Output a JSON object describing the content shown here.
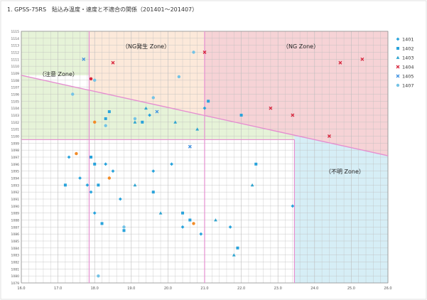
{
  "page_title": "1. GPSS-75RS　貼込み温度・速度と不適合の関係（201401〜201407）",
  "zones": {
    "caution": "（注意 Zone）",
    "ng_occur": "（NG発生 Zone）",
    "ng": "（NG Zone）",
    "unstable": "（不明 Zone）"
  },
  "colors": {
    "caution_zone": "#E6F3D8",
    "ng_occur_zone": "#FCE9DA",
    "ng_zone": "#F6D3D6",
    "unstable_zone": "#D6EEF6",
    "grid": "#BDBDBD",
    "pink_line": "#E58FD0",
    "s1401": "#29A3DB",
    "s1402": "#29A3DB",
    "s1403": "#2FA4CF",
    "s1404": "#D7263D",
    "s1405": "#3D8FE0",
    "s1407": "#74C3E6",
    "orange": "#F28C28"
  },
  "chart_data": {
    "type": "scatter",
    "title": "",
    "xlabel": "",
    "ylabel": "",
    "xlim": [
      16.0,
      26.0
    ],
    "ylim": [
      1079,
      1115
    ],
    "x_ticks": [
      16.0,
      17.0,
      18.0,
      19.0,
      20.0,
      21.0,
      22.0,
      23.0,
      24.0,
      25.0,
      26.0
    ],
    "x_tick_labels": [
      "16.0",
      "17.0",
      "18.0",
      "19.0",
      "20.0",
      "21.0",
      "22.0",
      "23.0",
      "24.0",
      "25.0",
      "26.0"
    ],
    "y_ticks": [
      1079,
      1080,
      1081,
      1082,
      1083,
      1084,
      1085,
      1086,
      1087,
      1088,
      1089,
      1090,
      1091,
      1092,
      1093,
      1094,
      1095,
      1096,
      1097,
      1098,
      1099,
      1100,
      1101,
      1102,
      1103,
      1104,
      1105,
      1106,
      1107,
      1108,
      1109,
      1110,
      1111,
      1112,
      1113,
      1114,
      1115
    ],
    "y_tick_labels": [
      "1079",
      "1080",
      "1081",
      "1082",
      "1083",
      "1084",
      "1085",
      "1086",
      "1087",
      "1088",
      "1089",
      "1090",
      "1091",
      "1092",
      "1093",
      "1094",
      "1095",
      "1096",
      "1097",
      "1098",
      "1099",
      "1100",
      "1101",
      "1102",
      "1103",
      "1104",
      "1105",
      "1106",
      "1107",
      "1108",
      "1109",
      "1110",
      "1111",
      "1112",
      "1113",
      "1114",
      "1115"
    ],
    "grid": true,
    "legend_position": "right",
    "zone_bounds": {
      "v1_x": 17.85,
      "v2_x": 21.0,
      "v3_x": 23.45,
      "h1_y": 1109.0,
      "h2_y": 1099.5,
      "diag_start": [
        16.0,
        1108.7
      ],
      "diag_end": [
        26.0,
        1097.2
      ]
    },
    "series": [
      {
        "name": "1401",
        "marker": "diamond",
        "color": "#29A3DB",
        "points": [
          [
            17.3,
            1097.0
          ],
          [
            17.6,
            1094.0
          ],
          [
            17.8,
            1093.0
          ],
          [
            17.9,
            1092.0
          ],
          [
            18.0,
            1089.0
          ],
          [
            18.3,
            1096.0
          ],
          [
            18.5,
            1095.0
          ],
          [
            18.7,
            1091.0
          ],
          [
            19.5,
            1103.0
          ],
          [
            19.6,
            1095.0
          ],
          [
            20.1,
            1096.0
          ],
          [
            20.4,
            1087.0
          ],
          [
            20.9,
            1086.0
          ],
          [
            21.0,
            1104.0
          ],
          [
            21.7,
            1087.0
          ],
          [
            23.4,
            1090.0
          ]
        ]
      },
      {
        "name": "1402",
        "marker": "square",
        "color": "#29A3DB",
        "points": [
          [
            17.2,
            1093.0
          ],
          [
            17.9,
            1097.0
          ],
          [
            18.0,
            1096.0
          ],
          [
            18.1,
            1093.0
          ],
          [
            18.2,
            1087.5
          ],
          [
            18.3,
            1102.5
          ],
          [
            18.4,
            1103.5
          ],
          [
            18.8,
            1086.5
          ],
          [
            19.3,
            1102.0
          ],
          [
            19.6,
            1092.0
          ],
          [
            20.4,
            1089.0
          ],
          [
            20.6,
            1088.0
          ],
          [
            21.1,
            1105.0
          ],
          [
            21.9,
            1084.0
          ],
          [
            22.0,
            1103.0
          ],
          [
            22.4,
            1096.0
          ]
        ]
      },
      {
        "name": "1403",
        "marker": "triangle",
        "color": "#2FA4CF",
        "points": [
          [
            19.1,
            1102.0
          ],
          [
            19.4,
            1104.0
          ],
          [
            19.1,
            1093.0
          ],
          [
            19.8,
            1089.0
          ],
          [
            20.8,
            1101.0
          ],
          [
            21.3,
            1088.0
          ],
          [
            21.8,
            1083.0
          ],
          [
            22.3,
            1093.0
          ],
          [
            20.2,
            1102.0
          ]
        ]
      },
      {
        "name": "1404",
        "marker": "x",
        "color": "#D7263D",
        "points": [
          [
            18.5,
            1110.5
          ],
          [
            21.0,
            1112.0
          ],
          [
            22.8,
            1104.0
          ],
          [
            23.4,
            1103.0
          ],
          [
            24.7,
            1110.5
          ],
          [
            25.3,
            1111.0
          ],
          [
            24.4,
            1100.0
          ]
        ]
      },
      {
        "name": "1405",
        "marker": "x",
        "color": "#3D8FE0",
        "points": [
          [
            17.7,
            1111.0
          ],
          [
            19.7,
            1103.5
          ],
          [
            20.6,
            1098.5
          ]
        ]
      },
      {
        "name": "1407",
        "marker": "circle",
        "color": "#74C3E6",
        "points": [
          [
            17.4,
            1106.0
          ],
          [
            18.3,
            1101.5
          ],
          [
            18.0,
            1108.0
          ],
          [
            19.1,
            1102.5
          ],
          [
            19.6,
            1105.5
          ],
          [
            20.3,
            1108.5
          ],
          [
            20.7,
            1112.0
          ],
          [
            18.8,
            1087.0
          ],
          [
            18.1,
            1080.0
          ]
        ]
      },
      {
        "name": "",
        "marker": "circle",
        "color": "#F28C28",
        "points": [
          [
            17.5,
            1097.5
          ],
          [
            18.0,
            1102.0
          ],
          [
            18.4,
            1094.0
          ],
          [
            20.7,
            1087.5
          ]
        ]
      },
      {
        "name": "",
        "marker": "circle",
        "color": "#D7263D",
        "points": [
          [
            17.9,
            1108.2
          ]
        ]
      }
    ],
    "legend_entries": [
      {
        "label": "1401",
        "marker": "diamond",
        "color": "#29A3DB"
      },
      {
        "label": "1402",
        "marker": "square",
        "color": "#29A3DB"
      },
      {
        "label": "1403",
        "marker": "triangle",
        "color": "#2FA4CF"
      },
      {
        "label": "1404",
        "marker": "x",
        "color": "#D7263D"
      },
      {
        "label": "1405",
        "marker": "x",
        "color": "#3D8FE0"
      },
      {
        "label": "1407",
        "marker": "circle",
        "color": "#74C3E6"
      }
    ]
  }
}
